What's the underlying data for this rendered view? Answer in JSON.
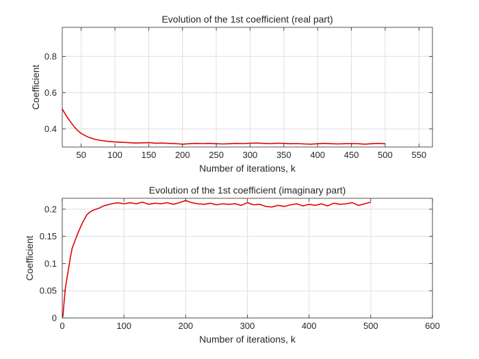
{
  "chart_data": [
    {
      "type": "line",
      "title": "Evolution of the 1st coefficient (real part)",
      "xlabel": "Number of iterations, k",
      "ylabel": "Coefficient",
      "xlim": [
        22,
        570
      ],
      "ylim": [
        0.3,
        0.96
      ],
      "xticks": [
        50,
        100,
        150,
        200,
        250,
        300,
        350,
        400,
        450,
        500,
        550
      ],
      "yticks": [
        0.4,
        0.6,
        0.8
      ],
      "xtick_labels": [
        "50",
        "100",
        "150",
        "200",
        "250",
        "300",
        "350",
        "400",
        "450",
        "500",
        "550"
      ],
      "ytick_labels": [
        "0.4",
        "0.6",
        "0.8"
      ],
      "grid": true,
      "series": [
        {
          "color": "#e00000",
          "x": [
            22,
            25,
            30,
            35,
            40,
            45,
            50,
            55,
            60,
            70,
            80,
            90,
            100,
            110,
            120,
            130,
            140,
            150,
            160,
            170,
            180,
            190,
            200,
            210,
            220,
            230,
            240,
            250,
            260,
            270,
            280,
            290,
            300,
            310,
            320,
            330,
            340,
            350,
            360,
            370,
            380,
            390,
            400,
            410,
            420,
            430,
            440,
            450,
            460,
            470,
            480,
            490,
            500
          ],
          "y": [
            0.51,
            0.49,
            0.46,
            0.435,
            0.41,
            0.39,
            0.375,
            0.365,
            0.355,
            0.343,
            0.336,
            0.331,
            0.328,
            0.326,
            0.324,
            0.322,
            0.323,
            0.324,
            0.321,
            0.322,
            0.32,
            0.319,
            0.316,
            0.318,
            0.32,
            0.319,
            0.32,
            0.318,
            0.317,
            0.318,
            0.32,
            0.319,
            0.321,
            0.322,
            0.32,
            0.319,
            0.321,
            0.32,
            0.318,
            0.319,
            0.317,
            0.316,
            0.318,
            0.32,
            0.318,
            0.317,
            0.318,
            0.319,
            0.318,
            0.316,
            0.318,
            0.32,
            0.318
          ]
        }
      ]
    },
    {
      "type": "line",
      "title": "Evolution of the 1st coefficient (imaginary part)",
      "xlabel": "Number of iterations, k",
      "ylabel": "Coefficient",
      "xlim": [
        0,
        600
      ],
      "ylim": [
        0,
        0.22
      ],
      "xticks": [
        0,
        100,
        200,
        300,
        400,
        500,
        600
      ],
      "yticks": [
        0,
        0.05,
        0.1,
        0.15,
        0.2
      ],
      "xtick_labels": [
        "0",
        "100",
        "200",
        "300",
        "400",
        "500",
        "600"
      ],
      "ytick_labels": [
        "0",
        "0.05",
        "0.1",
        "0.15",
        "0.2"
      ],
      "grid": true,
      "series": [
        {
          "color": "#e00000",
          "x": [
            1,
            3,
            5,
            8,
            10,
            13,
            16,
            20,
            25,
            30,
            35,
            40,
            45,
            50,
            55,
            60,
            65,
            70,
            80,
            90,
            100,
            110,
            120,
            130,
            140,
            150,
            160,
            170,
            180,
            190,
            200,
            210,
            220,
            230,
            240,
            250,
            260,
            270,
            280,
            290,
            300,
            310,
            320,
            330,
            340,
            350,
            360,
            370,
            380,
            390,
            400,
            410,
            420,
            430,
            440,
            450,
            460,
            470,
            480,
            490,
            500
          ],
          "y": [
            0.002,
            0.03,
            0.055,
            0.075,
            0.09,
            0.11,
            0.128,
            0.14,
            0.155,
            0.168,
            0.18,
            0.19,
            0.195,
            0.198,
            0.2,
            0.202,
            0.205,
            0.207,
            0.21,
            0.212,
            0.21,
            0.212,
            0.21,
            0.213,
            0.209,
            0.211,
            0.21,
            0.212,
            0.209,
            0.212,
            0.216,
            0.212,
            0.21,
            0.209,
            0.211,
            0.208,
            0.21,
            0.209,
            0.21,
            0.207,
            0.212,
            0.208,
            0.209,
            0.205,
            0.204,
            0.207,
            0.205,
            0.208,
            0.21,
            0.206,
            0.209,
            0.207,
            0.21,
            0.206,
            0.211,
            0.209,
            0.21,
            0.212,
            0.207,
            0.21,
            0.213
          ]
        }
      ]
    }
  ]
}
